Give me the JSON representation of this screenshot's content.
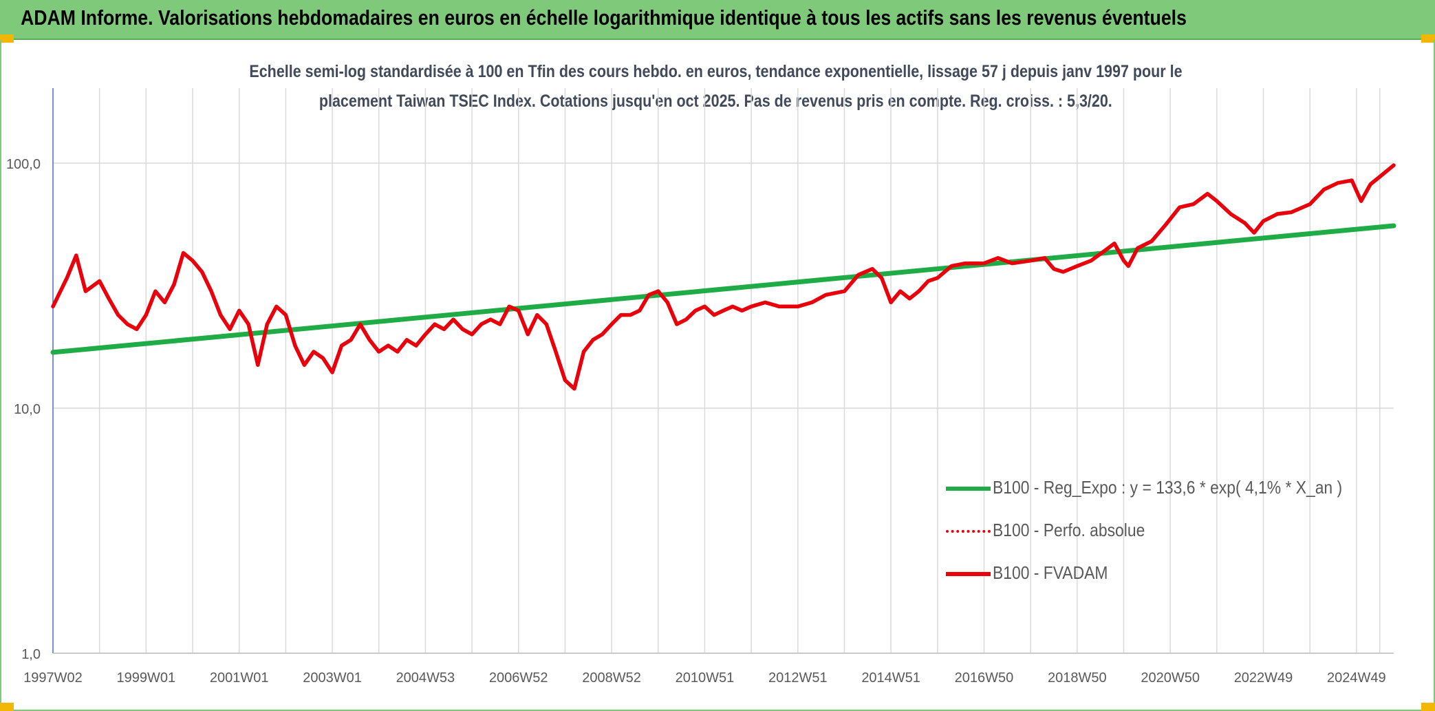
{
  "banner": {
    "title": "ADAM Informe. Valorisations hebdomadaires en euros en échelle logarithmique identique à tous les actifs sans les revenus éventuels"
  },
  "colors": {
    "banner_bg": "#7ec97a",
    "corner_accent": "#f2b705",
    "regression_line": "#1fac47",
    "fvadam_line": "#e8000b",
    "title_text": "#404a5a",
    "grid": "#d9d9d9"
  },
  "chart_data": {
    "type": "line",
    "title_line1": "Echelle semi-log standardisée à 100 en Tfin des cours hebdo. en euros, tendance exponentielle, lissage 57 j depuis janv 1997 pour le",
    "title_line2": "placement Taiwan TSEC Index. Cotations jusqu'en oct 2025. Pas de revenus pris en compte. Reg. croiss. : 5,3/20.",
    "yscale": "log",
    "ylim": [
      1,
      200
    ],
    "y_ticks": [
      1,
      10,
      100
    ],
    "y_tick_labels": [
      "1,0",
      "10,0",
      "100,0"
    ],
    "xlim": [
      1997.0,
      2025.8
    ],
    "x_tick_labels": [
      "1997W02",
      "1999W01",
      "2001W01",
      "2003W01",
      "2004W53",
      "2006W52",
      "2008W52",
      "2010W51",
      "2012W51",
      "2014W51",
      "2016W50",
      "2018W50",
      "2020W50",
      "2022W49",
      "2024W49"
    ],
    "x_tick_positions": [
      1997.0,
      1999.0,
      2001.0,
      2003.0,
      2005.0,
      2007.0,
      2009.0,
      2011.0,
      2013.0,
      2015.0,
      2017.0,
      2019.0,
      2021.0,
      2023.0,
      2025.0
    ],
    "gridlines": true,
    "legend_position": "bottom-right",
    "series": [
      {
        "name": "B100 - Reg_Expo : y = 133,6 * exp( 4,1% *  X_an )",
        "style": "solid-green",
        "x": [
          1997.0,
          2025.8
        ],
        "y": [
          16.9,
          55.5
        ]
      },
      {
        "name": "B100 - Perfo. absolue",
        "style": "dotted-red",
        "x": [],
        "y": []
      },
      {
        "name": "B100 - FVADAM",
        "style": "solid-red",
        "x": [
          1997.0,
          1997.3,
          1997.5,
          1997.7,
          1998.0,
          1998.2,
          1998.4,
          1998.6,
          1998.8,
          1999.0,
          1999.2,
          1999.4,
          1999.6,
          1999.8,
          2000.0,
          2000.2,
          2000.4,
          2000.6,
          2000.8,
          2001.0,
          2001.2,
          2001.4,
          2001.6,
          2001.8,
          2002.0,
          2002.2,
          2002.4,
          2002.6,
          2002.8,
          2003.0,
          2003.2,
          2003.4,
          2003.6,
          2003.8,
          2004.0,
          2004.2,
          2004.4,
          2004.6,
          2004.8,
          2005.0,
          2005.2,
          2005.4,
          2005.6,
          2005.8,
          2006.0,
          2006.2,
          2006.4,
          2006.6,
          2006.8,
          2007.0,
          2007.2,
          2007.4,
          2007.6,
          2007.8,
          2008.0,
          2008.2,
          2008.4,
          2008.6,
          2008.8,
          2009.0,
          2009.2,
          2009.4,
          2009.6,
          2009.8,
          2010.0,
          2010.2,
          2010.4,
          2010.6,
          2010.8,
          2011.0,
          2011.2,
          2011.4,
          2011.6,
          2011.8,
          2012.0,
          2012.3,
          2012.6,
          2013.0,
          2013.3,
          2013.6,
          2014.0,
          2014.3,
          2014.6,
          2014.8,
          2015.0,
          2015.2,
          2015.4,
          2015.6,
          2015.8,
          2016.0,
          2016.3,
          2016.6,
          2017.0,
          2017.3,
          2017.6,
          2018.0,
          2018.3,
          2018.5,
          2018.7,
          2019.0,
          2019.3,
          2019.6,
          2019.8,
          2020.0,
          2020.1,
          2020.3,
          2020.6,
          2020.9,
          2021.2,
          2021.5,
          2021.8,
          2022.0,
          2022.3,
          2022.6,
          2022.8,
          2023.0,
          2023.3,
          2023.6,
          2024.0,
          2024.3,
          2024.6,
          2024.9,
          2025.1,
          2025.3,
          2025.5,
          2025.8
        ],
        "y": [
          26,
          34,
          42,
          30,
          33,
          28,
          24,
          22,
          21,
          24,
          30,
          27,
          32,
          43,
          40,
          36,
          30,
          24,
          21,
          25,
          22,
          15,
          22,
          26,
          24,
          18,
          15,
          17,
          16,
          14,
          18,
          19,
          22,
          19,
          17,
          18,
          17,
          19,
          18,
          20,
          22,
          21,
          23,
          21,
          20,
          22,
          23,
          22,
          26,
          25,
          20,
          24,
          22,
          17,
          13,
          12,
          17,
          19,
          20,
          22,
          24,
          24,
          25,
          29,
          30,
          27,
          22,
          23,
          25,
          26,
          24,
          25,
          26,
          25,
          26,
          27,
          26,
          26,
          27,
          29,
          30,
          35,
          37,
          34,
          27,
          30,
          28,
          30,
          33,
          34,
          38,
          39,
          39,
          41,
          39,
          40,
          41,
          37,
          36,
          38,
          40,
          44,
          47,
          40,
          38,
          45,
          48,
          56,
          66,
          68,
          75,
          70,
          62,
          57,
          52,
          58,
          62,
          63,
          68,
          78,
          83,
          85,
          70,
          82,
          88,
          98
        ]
      }
    ]
  }
}
